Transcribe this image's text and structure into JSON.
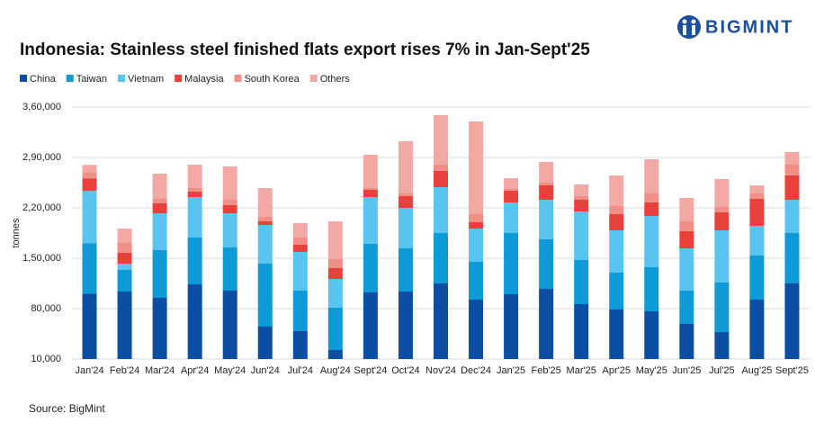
{
  "brand": "BIGMINT",
  "source": "Source: BigMint",
  "chart_data": {
    "type": "stacked_bar",
    "title": "Indonesia: Stainless steel finished flats export rises 7% in Jan-Sept'25",
    "y_label": "tonnes",
    "categories": [
      "Jan'24",
      "Feb'24",
      "Mar'24",
      "Apr'24",
      "May'24",
      "Jun'24",
      "Jul'24",
      "Aug'24",
      "Sept'24",
      "Oct'24",
      "Nov'24",
      "Dec'24",
      "Jan'25",
      "Feb'25",
      "Mar'25",
      "Apr'25",
      "May'25",
      "Jun'25",
      "Jul'25",
      "Aug'25",
      "Sept'25"
    ],
    "series": [
      {
        "name": "China",
        "color": "#0b4ea2",
        "values": [
          101000,
          103750,
          95000,
          113750,
          105000,
          55000,
          48750,
          22500,
          102500,
          103750,
          115000,
          92500,
          100000,
          107500,
          86250,
          78750,
          76250,
          58750,
          47500,
          92500,
          115000
        ]
      },
      {
        "name": "Taiwan",
        "color": "#0d9ad6",
        "values": [
          70000,
          30000,
          66250,
          65000,
          60000,
          87500,
          56250,
          58750,
          67500,
          60000,
          70000,
          52500,
          85000,
          68750,
          61250,
          51250,
          61250,
          46250,
          68750,
          61250,
          70000
        ]
      },
      {
        "name": "Vietnam",
        "color": "#58c4ef",
        "values": [
          72500,
          8750,
          51250,
          56250,
          47500,
          53750,
          53750,
          40000,
          65000,
          56250,
          63750,
          46250,
          42500,
          55000,
          67500,
          58750,
          71250,
          58750,
          72500,
          41250,
          46250
        ]
      },
      {
        "name": "Malaysia",
        "color": "#e8413b",
        "values": [
          17500,
          15000,
          13750,
          7500,
          11250,
          5000,
          10000,
          15000,
          10000,
          16250,
          22500,
          8750,
          16250,
          20000,
          16250,
          22500,
          18750,
          23750,
          25000,
          37500,
          33750
        ]
      },
      {
        "name": "South Korea",
        "color": "#f08f87",
        "values": [
          8750,
          13750,
          6250,
          5000,
          7500,
          6250,
          10000,
          12500,
          2500,
          3750,
          8750,
          11250,
          2500,
          3750,
          5000,
          11250,
          12500,
          13750,
          7500,
          7500,
          15000
        ]
      },
      {
        "name": "Others",
        "color": "#f2a9a4",
        "values": [
          10000,
          20000,
          35000,
          32500,
          46250,
          40000,
          20000,
          52500,
          46250,
          72500,
          68750,
          128750,
          15000,
          28750,
          16250,
          42500,
          47500,
          32500,
          38750,
          11250,
          17500
        ]
      }
    ],
    "ylim": [
      10000,
      360000
    ],
    "yticks": [
      {
        "value": 10000,
        "label": "10,000"
      },
      {
        "value": 80000,
        "label": "80,000"
      },
      {
        "value": 150000,
        "label": "1,50,000"
      },
      {
        "value": 220000,
        "label": "2,20,000"
      },
      {
        "value": 290000,
        "label": "2,90,000"
      },
      {
        "value": 360000,
        "label": "3,60,000"
      }
    ],
    "grid": true,
    "legend": "top-left"
  }
}
